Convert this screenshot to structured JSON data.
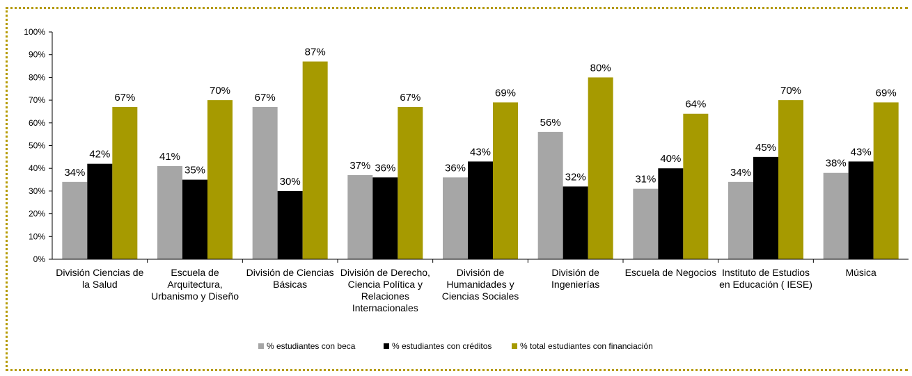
{
  "chart_data": {
    "type": "bar",
    "title": "",
    "xlabel": "",
    "ylabel": "",
    "ylim": [
      0,
      100
    ],
    "yticks": [
      "0%",
      "10%",
      "20%",
      "30%",
      "40%",
      "50%",
      "60%",
      "70%",
      "80%",
      "90%",
      "100%"
    ],
    "grid": false,
    "legend_position": "bottom",
    "categories": [
      [
        "División Ciencias de",
        "la Salud"
      ],
      [
        "Escuela de",
        "Arquitectura,",
        "Urbanismo y Diseño"
      ],
      [
        "División de Ciencias",
        "Básicas"
      ],
      [
        "División de Derecho,",
        "Ciencia Política y",
        "Relaciones",
        "Internacionales"
      ],
      [
        "División de",
        "Humanidades y",
        "Ciencias Sociales"
      ],
      [
        "División de",
        "Ingenierías"
      ],
      [
        "Escuela de Negocios"
      ],
      [
        "Instituto de Estudios",
        "en Educación ( IESE)"
      ],
      [
        "Música"
      ]
    ],
    "series": [
      {
        "name": "% estudiantes con beca",
        "color": "#a6a6a6",
        "values": [
          34,
          41,
          67,
          37,
          36,
          56,
          31,
          34,
          38
        ],
        "labels": [
          "34%",
          "41%",
          "67%",
          "37%",
          "36%",
          "56%",
          "31%",
          "34%",
          "38%"
        ]
      },
      {
        "name": "% estudiantes con créditos",
        "color": "#000000",
        "values": [
          42,
          35,
          30,
          36,
          43,
          32,
          40,
          45,
          43
        ],
        "labels": [
          "42%",
          "35%",
          "30%",
          "36%",
          "43%",
          "32%",
          "40%",
          "45%",
          "43%"
        ]
      },
      {
        "name": "% total estudiantes con financiación",
        "color": "#a69a00",
        "values": [
          67,
          70,
          87,
          67,
          69,
          80,
          64,
          70,
          69
        ],
        "labels": [
          "67%",
          "70%",
          "87%",
          "67%",
          "69%",
          "80%",
          "64%",
          "70%",
          "69%"
        ]
      }
    ]
  }
}
